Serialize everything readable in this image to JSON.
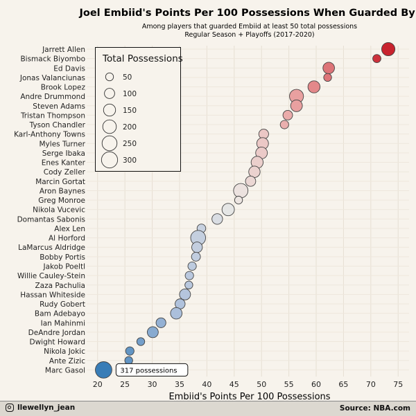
{
  "chart_data": {
    "type": "scatter",
    "title": "Joel Embiid's Points Per 100 Possessions When Guarded By ___",
    "subtitle_line1": "Among players that guarded Embiid at least 50 total possessions",
    "subtitle_line2": "Regular Season + Playoffs (2017-2020)",
    "xlabel": "Embiid's Points Per 100 Possessions",
    "xlim": [
      18,
      77
    ],
    "x_ticks": [
      20,
      25,
      30,
      35,
      40,
      45,
      50,
      55,
      60,
      65,
      70,
      75
    ],
    "grid": true,
    "legend_title": "Total Possessions",
    "legend_sizes": [
      50,
      100,
      150,
      200,
      250,
      300
    ],
    "annotation": "317 possessions",
    "points": [
      {
        "player": "Jarrett Allen",
        "x": 73.2,
        "poss": 190
      },
      {
        "player": "Bismack Biyombo",
        "x": 71.1,
        "poss": 55
      },
      {
        "player": "Ed Davis",
        "x": 62.3,
        "poss": 135
      },
      {
        "player": "Jonas Valanciunas",
        "x": 62.1,
        "poss": 50
      },
      {
        "player": "Brook Lopez",
        "x": 59.6,
        "poss": 150
      },
      {
        "player": "Andre Drummond",
        "x": 56.4,
        "poss": 215
      },
      {
        "player": "Steven Adams",
        "x": 56.4,
        "poss": 140
      },
      {
        "player": "Tristan Thompson",
        "x": 54.8,
        "poss": 85
      },
      {
        "player": "Tyson Chandler",
        "x": 54.2,
        "poss": 60
      },
      {
        "player": "Karl-Anthony Towns",
        "x": 50.4,
        "poss": 90
      },
      {
        "player": "Myles Turner",
        "x": 50.2,
        "poss": 140
      },
      {
        "player": "Serge Ibaka",
        "x": 50.0,
        "poss": 140
      },
      {
        "player": "Enes Kanter",
        "x": 49.2,
        "poss": 150
      },
      {
        "player": "Cody Zeller",
        "x": 48.7,
        "poss": 130
      },
      {
        "player": "Marcin Gortat",
        "x": 48.0,
        "poss": 100
      },
      {
        "player": "Aron Baynes",
        "x": 46.2,
        "poss": 230
      },
      {
        "player": "Greg Monroe",
        "x": 45.8,
        "poss": 50
      },
      {
        "player": "Nikola Vucevic",
        "x": 43.9,
        "poss": 160
      },
      {
        "player": "Domantas Sabonis",
        "x": 41.9,
        "poss": 110
      },
      {
        "player": "Alex Len",
        "x": 39.0,
        "poss": 65
      },
      {
        "player": "Al Horford",
        "x": 38.4,
        "poss": 250
      },
      {
        "player": "LaMarcus Aldridge",
        "x": 38.2,
        "poss": 110
      },
      {
        "player": "Bobby Portis",
        "x": 38.0,
        "poss": 70
      },
      {
        "player": "Jakob Poeltl",
        "x": 37.3,
        "poss": 60
      },
      {
        "player": "Willie Cauley-Stein",
        "x": 36.8,
        "poss": 60
      },
      {
        "player": "Zaza Pachulia",
        "x": 36.7,
        "poss": 50
      },
      {
        "player": "Hassan Whiteside",
        "x": 36.0,
        "poss": 120
      },
      {
        "player": "Rudy Gobert",
        "x": 35.1,
        "poss": 95
      },
      {
        "player": "Bam Adebayo",
        "x": 34.4,
        "poss": 135
      },
      {
        "player": "Ian Mahinmi",
        "x": 31.6,
        "poss": 90
      },
      {
        "player": "DeAndre Jordan",
        "x": 30.1,
        "poss": 120
      },
      {
        "player": "Dwight Howard",
        "x": 27.9,
        "poss": 50
      },
      {
        "player": "Nikola Jokic",
        "x": 25.9,
        "poss": 60
      },
      {
        "player": "Ante Zizic",
        "x": 25.7,
        "poss": 50
      },
      {
        "player": "Marc Gasol",
        "x": 21.1,
        "poss": 317
      }
    ]
  },
  "footer": {
    "handle": "llewellyn_jean",
    "source": "Source: NBA.com"
  }
}
